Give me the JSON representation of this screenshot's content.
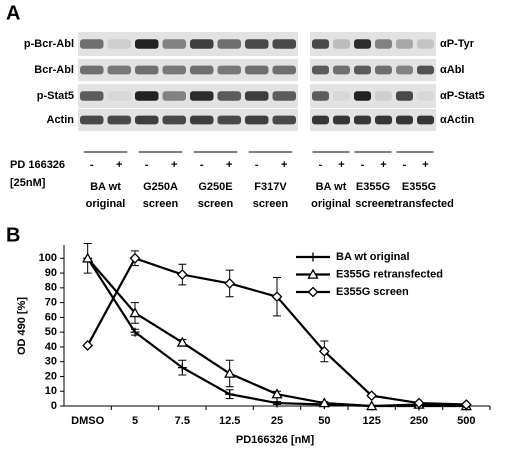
{
  "panel_a": {
    "label": "A",
    "row_labels_left": [
      "p-Bcr-Abl",
      "Bcr-Abl",
      "p-Stat5",
      "Actin"
    ],
    "row_labels_right": [
      "αP-Tyr",
      "αAbl",
      "αP-Stat5",
      "αActin"
    ],
    "treatment": [
      "PD 166326",
      "[25nM]"
    ],
    "groups": [
      {
        "signs": [
          "-",
          "+"
        ],
        "label": [
          "BA wt",
          "original"
        ]
      },
      {
        "signs": [
          "-",
          "+"
        ],
        "label": [
          "G250A",
          "screen"
        ]
      },
      {
        "signs": [
          "-",
          "+"
        ],
        "label": [
          "G250E",
          "screen"
        ]
      },
      {
        "signs": [
          "-",
          "+"
        ],
        "label": [
          "F317V",
          "screen"
        ]
      },
      {
        "signs": [
          "-",
          "+"
        ],
        "label": [
          "BA wt",
          "original"
        ]
      },
      {
        "signs": [
          "-",
          "+"
        ],
        "label": [
          "E355G",
          "screen"
        ]
      },
      {
        "signs": [
          "-",
          "+"
        ],
        "label": [
          "E355G",
          "retransfected"
        ]
      }
    ]
  },
  "chart_data": {
    "type": "line",
    "panel_label": "B",
    "x_label": "PD166326 [nM]",
    "y_label": "OD 490 [%]",
    "categories": [
      "DMSO",
      "5",
      "7.5",
      "12.5",
      "25",
      "50",
      "125",
      "250",
      "500"
    ],
    "ylim": [
      0,
      109
    ],
    "yticks": [
      0,
      10,
      20,
      30,
      40,
      50,
      60,
      70,
      80,
      90,
      100
    ],
    "grid": false,
    "legend": "top-right",
    "series": [
      {
        "name": "BA wt original",
        "color": "#000000",
        "marker": "plus",
        "values": [
          100,
          50,
          26,
          8,
          2,
          1,
          0,
          0,
          0
        ],
        "errors": [
          null,
          2,
          5,
          3,
          1,
          null,
          null,
          null,
          null
        ]
      },
      {
        "name": "E355G retransfected",
        "color": "#000000",
        "marker": "triangle",
        "values": [
          100,
          63,
          43,
          22,
          8,
          2,
          0,
          1,
          0
        ],
        "errors": [
          10,
          7,
          2,
          9,
          2,
          1,
          null,
          null,
          null
        ]
      },
      {
        "name": "E355G screen",
        "color": "#000000",
        "marker": "diamond",
        "values": [
          41,
          100,
          89,
          83,
          74,
          37,
          7,
          2,
          1
        ],
        "errors": [
          null,
          5,
          7,
          9,
          13,
          7,
          1,
          null,
          null
        ]
      }
    ]
  }
}
